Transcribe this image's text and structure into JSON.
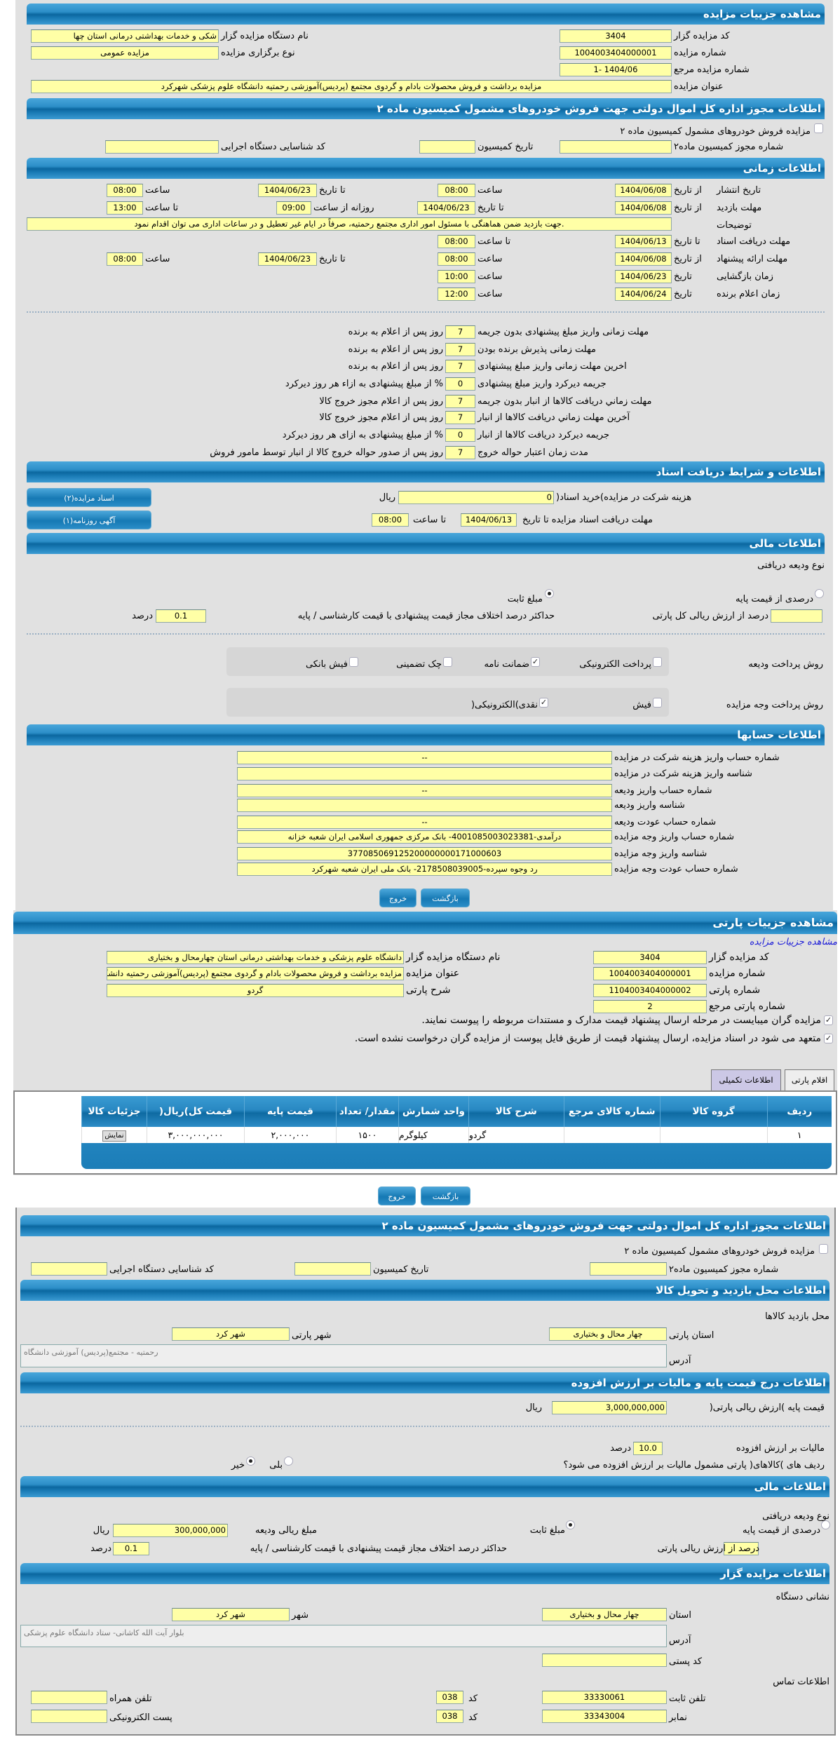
{
  "auction": {
    "title": "مشاهده جزییات مزایده",
    "code_label": "کد مزایده گزار",
    "code": "3404",
    "org_label": "نام دستگاه مزایده گزار",
    "org": "شکی و خدمات بهداشتی درمانی استان چها",
    "number_label": "شماره مزایده",
    "number": "1004003404000001",
    "type_label": "نوع برگزاری مزایده",
    "type": "مزایده عمومی",
    "ref_label": "شماره مزایده مرجع",
    "ref": "1- 1404/06",
    "subject_label": "عنوان مزایده",
    "subject": "مزایده برداشت و فروش محصولات بادام و گردوی مجتمع (پردیس)آموزشی رحمتیه دانشگاه علوم پزشکی شهرکرد"
  },
  "permit": {
    "title": "اطلاعات مجوز اداره کل اموال دولتی جهت فروش خودروهای مشمول کمیسیون ماده ۲",
    "checkbox_label": "مزایده فروش خودروهای مشمول کمیسیون ماده ۲",
    "permit_no_label": "شماره مجوز کمیسیون ماده۲",
    "permit_no": "",
    "date_label": "تاریخ کمیسیون",
    "date": "",
    "exec_code_label": "کد شناسایی دستگاه اجرایی",
    "exec_code": ""
  },
  "timing": {
    "title": "اطلاعات زمانی",
    "from_date": "از تاریخ",
    "to_date": "تا تاریخ",
    "date": "تاریخ",
    "hour": "ساعت",
    "to_hour": "تا ساعت",
    "daily_from": "روزانه از ساعت",
    "publish": {
      "label": "تاریخ انتشار",
      "from": "1404/06/08",
      "from_time": "08:00",
      "to": "1404/06/23",
      "to_time": "08:00"
    },
    "visit": {
      "label": "مهلت بازدید",
      "from": "1404/06/08",
      "to": "1404/06/23",
      "daily_from": "09:00",
      "daily_to": "13:00"
    },
    "desc_label": "توضیحات",
    "desc": ".جهت بازدید ضمن هماهنگی با مسئول امور اداری مجتمع رحمتیه، صرفاً در ایام غیر تعطیل و در ساعات اداری می توان اقدام نمود",
    "docs": {
      "label": "مهلت دریافت اسناد",
      "to": "1404/06/13",
      "to_time": "08:00"
    },
    "offer": {
      "label": "مهلت ارائه پیشنهاد",
      "from": "1404/06/08",
      "from_time": "08:00",
      "to": "1404/06/23",
      "to_time": "08:00"
    },
    "opening": {
      "label": "زمان بازگشایی",
      "date": "1404/06/23",
      "time": "10:00"
    },
    "winner": {
      "label": "زمان اعلام برنده",
      "date": "1404/06/24",
      "time": "12:00"
    }
  },
  "deadlines": [
    {
      "label": "مهلت زمانی واریز مبلغ پیشنهادی بدون جریمه",
      "value": "7",
      "suffix": "روز پس از اعلام به برنده"
    },
    {
      "label": "مهلت زمانی پذیرش برنده بودن",
      "value": "7",
      "suffix": "روز پس از اعلام به برنده"
    },
    {
      "label": "اخرین مهلت زمانی واریز مبلغ پیشنهادی",
      "value": "7",
      "suffix": "روز پس از اعلام به برنده"
    },
    {
      "label": "جریمه دیرکرد واریز مبلغ پیشنهادی",
      "value": "0",
      "suffix": "% از مبلغ پیشنهادی به ازاء هر روز دیرکرد"
    },
    {
      "label": "مهلت زماني دريافت کالاها از انبار بدون جريمه",
      "value": "7",
      "suffix": "روز پس از اعلام مجوز خروج کالا"
    },
    {
      "label": "آخرین مهلت زماني دريافت کالاها از انبار",
      "value": "7",
      "suffix": "روز پس از اعلام مجوز خروج کالا"
    },
    {
      "label": "جريمه ديرکرد دريافت کالاها از انبار",
      "value": "0",
      "suffix": "% از مبلغ پیشنهادی به ازای هر روز دیرکرد"
    },
    {
      "label": "مدت زمان اعتبار حواله خروج",
      "value": "7",
      "suffix": "روز پس از صدور حواله خروج کالا از انبار توسط مامور فروش"
    }
  ],
  "documents": {
    "title": "اطلاعات و شرایط دریافت اسناد",
    "fee_label": "هزینه شرکت در مزایده)خرید اسناد(",
    "fee": "0",
    "rial": "ریال",
    "deadline_label": "مهلت دریافت اسناد مزایده تا تاریخ",
    "deadline_date": "1404/06/13",
    "to_hour": "تا ساعت",
    "deadline_time": "08:00",
    "docs_button": "اسناد مزایده(۲)",
    "ad_button": "آگهی روزنامه(۱)"
  },
  "finance": {
    "title": "اطلاعات مالی",
    "deposit_type": "نوع ودیعه دریافتی",
    "percent_option": "درصدی از قیمت پایه",
    "fixed_option": "مبلغ ثابت",
    "selected": "fixed",
    "percent_label": "درصد از ارزش ریالی کل پارتی",
    "percent": "",
    "maxdiff_label": "حداکثر درصد اختلاف مجاز قیمت پیشنهادی با قیمت کارشناسی / پایه",
    "maxdiff": "0.1",
    "percent_unit": "درصد",
    "deposit_method_label": "روش پرداخت ودیعه",
    "deposit_methods": [
      {
        "label": "پرداخت الکترونیکی",
        "checked": false
      },
      {
        "label": "ضمانت نامه",
        "checked": true
      },
      {
        "label": "چک تضمینی",
        "checked": false
      },
      {
        "label": "فیش بانکی",
        "checked": false
      }
    ],
    "payment_method_label": "روش پرداخت وجه مزایده",
    "payment_methods": [
      {
        "label": "فیش",
        "checked": false
      },
      {
        "label": "نقدی)الکترونیکی(",
        "checked": true
      }
    ]
  },
  "accounts": {
    "title": "اطلاعات حسابها",
    "rows": [
      {
        "label": "شماره حساب واریز هزینه شرکت در مزایده",
        "value": "--"
      },
      {
        "label": "شناسه واریز هزینه شرکت در مزایده",
        "value": ""
      },
      {
        "label": "شماره حساب واریز ودیعه",
        "value": "--"
      },
      {
        "label": "شناسه واریز ودیعه",
        "value": ""
      },
      {
        "label": "شماره حساب عودت ودیعه",
        "value": "--"
      },
      {
        "label": "شماره حساب واریز وجه مزایده",
        "value": "درآمدی-4001085003023381- بانک مرکزی جمهوری اسلامی ایران شعبه خزانه"
      },
      {
        "label": "شناسه واریز وجه مزایده",
        "value": "377085069125200000000171000603"
      },
      {
        "label": "شماره حساب عودت وجه مزایده",
        "value": "رد وجوه سپرده-2178508039005- بانک ملی ایران شعبه شهرکرد"
      }
    ]
  },
  "buttons": {
    "back": "بازگشت",
    "exit": "خروج"
  },
  "lot": {
    "title": "مشاهده جزییات پارتی",
    "link": "مشاهده جزییات مزایده",
    "code_label": "کد مزایده گزار",
    "code": "3404",
    "org_label": "نام دستگاه مزایده گزار",
    "org": "دانشگاه علوم پزشکی و خدمات بهداشتی درمانی استان چهارمحال و بختیاری",
    "number_label": "شماره مزایده",
    "number": "1004003404000001",
    "subject_label": "عنوان مزایده",
    "subject": "مزایده برداشت و فروش محصولات بادام و گردوی مجتمع (پردیس)آموزشی رحمتیه دانشگاه علوم پزشکی شهرکرد",
    "lot_no_label": "شماره پارتی",
    "lot_no": "1104003404000002",
    "desc_label": "شرح پارتی",
    "desc": "گردو",
    "ref_label": "شماره پارتی مرجع",
    "ref": "2",
    "check1": "مزایده گران میبایست در مرحله ارسال پیشنهاد قیمت مدارک و مستندات مربوطه را پیوست نمایند.",
    "check2": "متعهد می شود در اسناد مزایده، ارسال پیشنهاد قیمت از طریق فایل پیوست از مزایده گران درخواست نشده است.",
    "tabs": [
      "اقلام پارتی",
      "اطلاعات تکمیلی"
    ],
    "table": {
      "headers": [
        "ردیف",
        "گروه کالا",
        "شماره کالای مرجع",
        "شرح کالا",
        "واحد شمارش",
        "مقدار/ تعداد",
        "قیمت پایه",
        "قیمت کل)ریال(",
        "جزئیات کالا"
      ],
      "rows": [
        [
          "۱",
          "",
          "",
          "گردو",
          "کیلوگرم",
          "۱۵۰۰",
          "۲,۰۰۰,۰۰۰",
          "۳,۰۰۰,۰۰۰,۰۰۰",
          "نمایش"
        ]
      ]
    }
  },
  "lot_permit": {
    "title": "اطلاعات مجوز اداره کل اموال دولتی جهت فروش خودروهای مشمول کمیسیون ماده ۲",
    "checkbox_label": "مزایده فروش خودروهای مشمول کمیسیون ماده ۲",
    "permit_no_label": "شماره مجوز کمیسیون ماده۲",
    "date_label": "تاریخ کمیسیون",
    "exec_code_label": "کد شناسایی دستگاه اجرایی"
  },
  "visit_place": {
    "title": "اطلاعات محل بازدید و تحویل کالا",
    "subtitle": "محل بازدید کالاها",
    "province_label": "استان پارتی",
    "province": "چهار محال و بختیاری",
    "city_label": "شهر پارتی",
    "city": "شهر کرد",
    "address_label": "آدرس",
    "address": "رحمتیه - مجتمع(پردیس) آموزشی دانشگاه"
  },
  "pricing": {
    "title": "اطلاعات درج قیمت پایه و مالیات بر ارزش افزوده",
    "base_label": "قیمت پایه )ارزش ریالی پارتی(",
    "base": "3,000,000,000",
    "rial": "ریال",
    "vat_label": "مالیات بر ارزش افزوده",
    "vat": "10.0",
    "percent_unit": "درصد",
    "vat_question": "ردیف های )کالاهای( پارتی مشمول مالیات بر ارزش افزوده می شود؟",
    "yes": "بلی",
    "no": "خیر",
    "selected": "no"
  },
  "lot_finance": {
    "title": "اطلاعات مالی",
    "deposit_type": "نوع ودیعه دریافتی",
    "percent_option": "درصدی از قیمت پایه",
    "fixed_option": "مبلغ ثابت",
    "selected": "fixed",
    "amount_label": "مبلغ ریالی ودیعه",
    "amount": "300,000,000",
    "rial": "ریال",
    "percent_label": "درصد از ارزش ریالی پارتی",
    "percent": "",
    "maxdiff_label": "حداکثر درصد اختلاف مجاز قیمت پیشنهادی با قیمت کارشناسی / پایه",
    "maxdiff": "0.1",
    "percent_unit": "درصد"
  },
  "auctioneer": {
    "title": "اطلاعات مزایده گزار",
    "address_title": "نشانی دستگاه",
    "province_label": "استان",
    "province": "چهار محال و بختیاری",
    "city_label": "شهر",
    "city": "شهر کرد",
    "address_label": "آدرس",
    "address": "بلوار آیت الله کاشانی- ستاد دانشگاه علوم پزشکی",
    "postal_label": "کد پستی",
    "postal": "",
    "contact_title": "اطلاعات تماس",
    "phone_label": "تلفن ثابت",
    "phone": "33330061",
    "code_label": "کد",
    "phone_code": "038",
    "mobile_label": "تلفن همراه",
    "mobile": "",
    "fax_label": "نمابر",
    "fax": "33343004",
    "fax_code": "038",
    "email_label": "پست الکترونیکی",
    "email": ""
  },
  "colors": {
    "header": "#1b7cb6",
    "input": "#ffffa6",
    "panel": "#e1e1e1",
    "tab_inactive": "#ccc8e6"
  }
}
